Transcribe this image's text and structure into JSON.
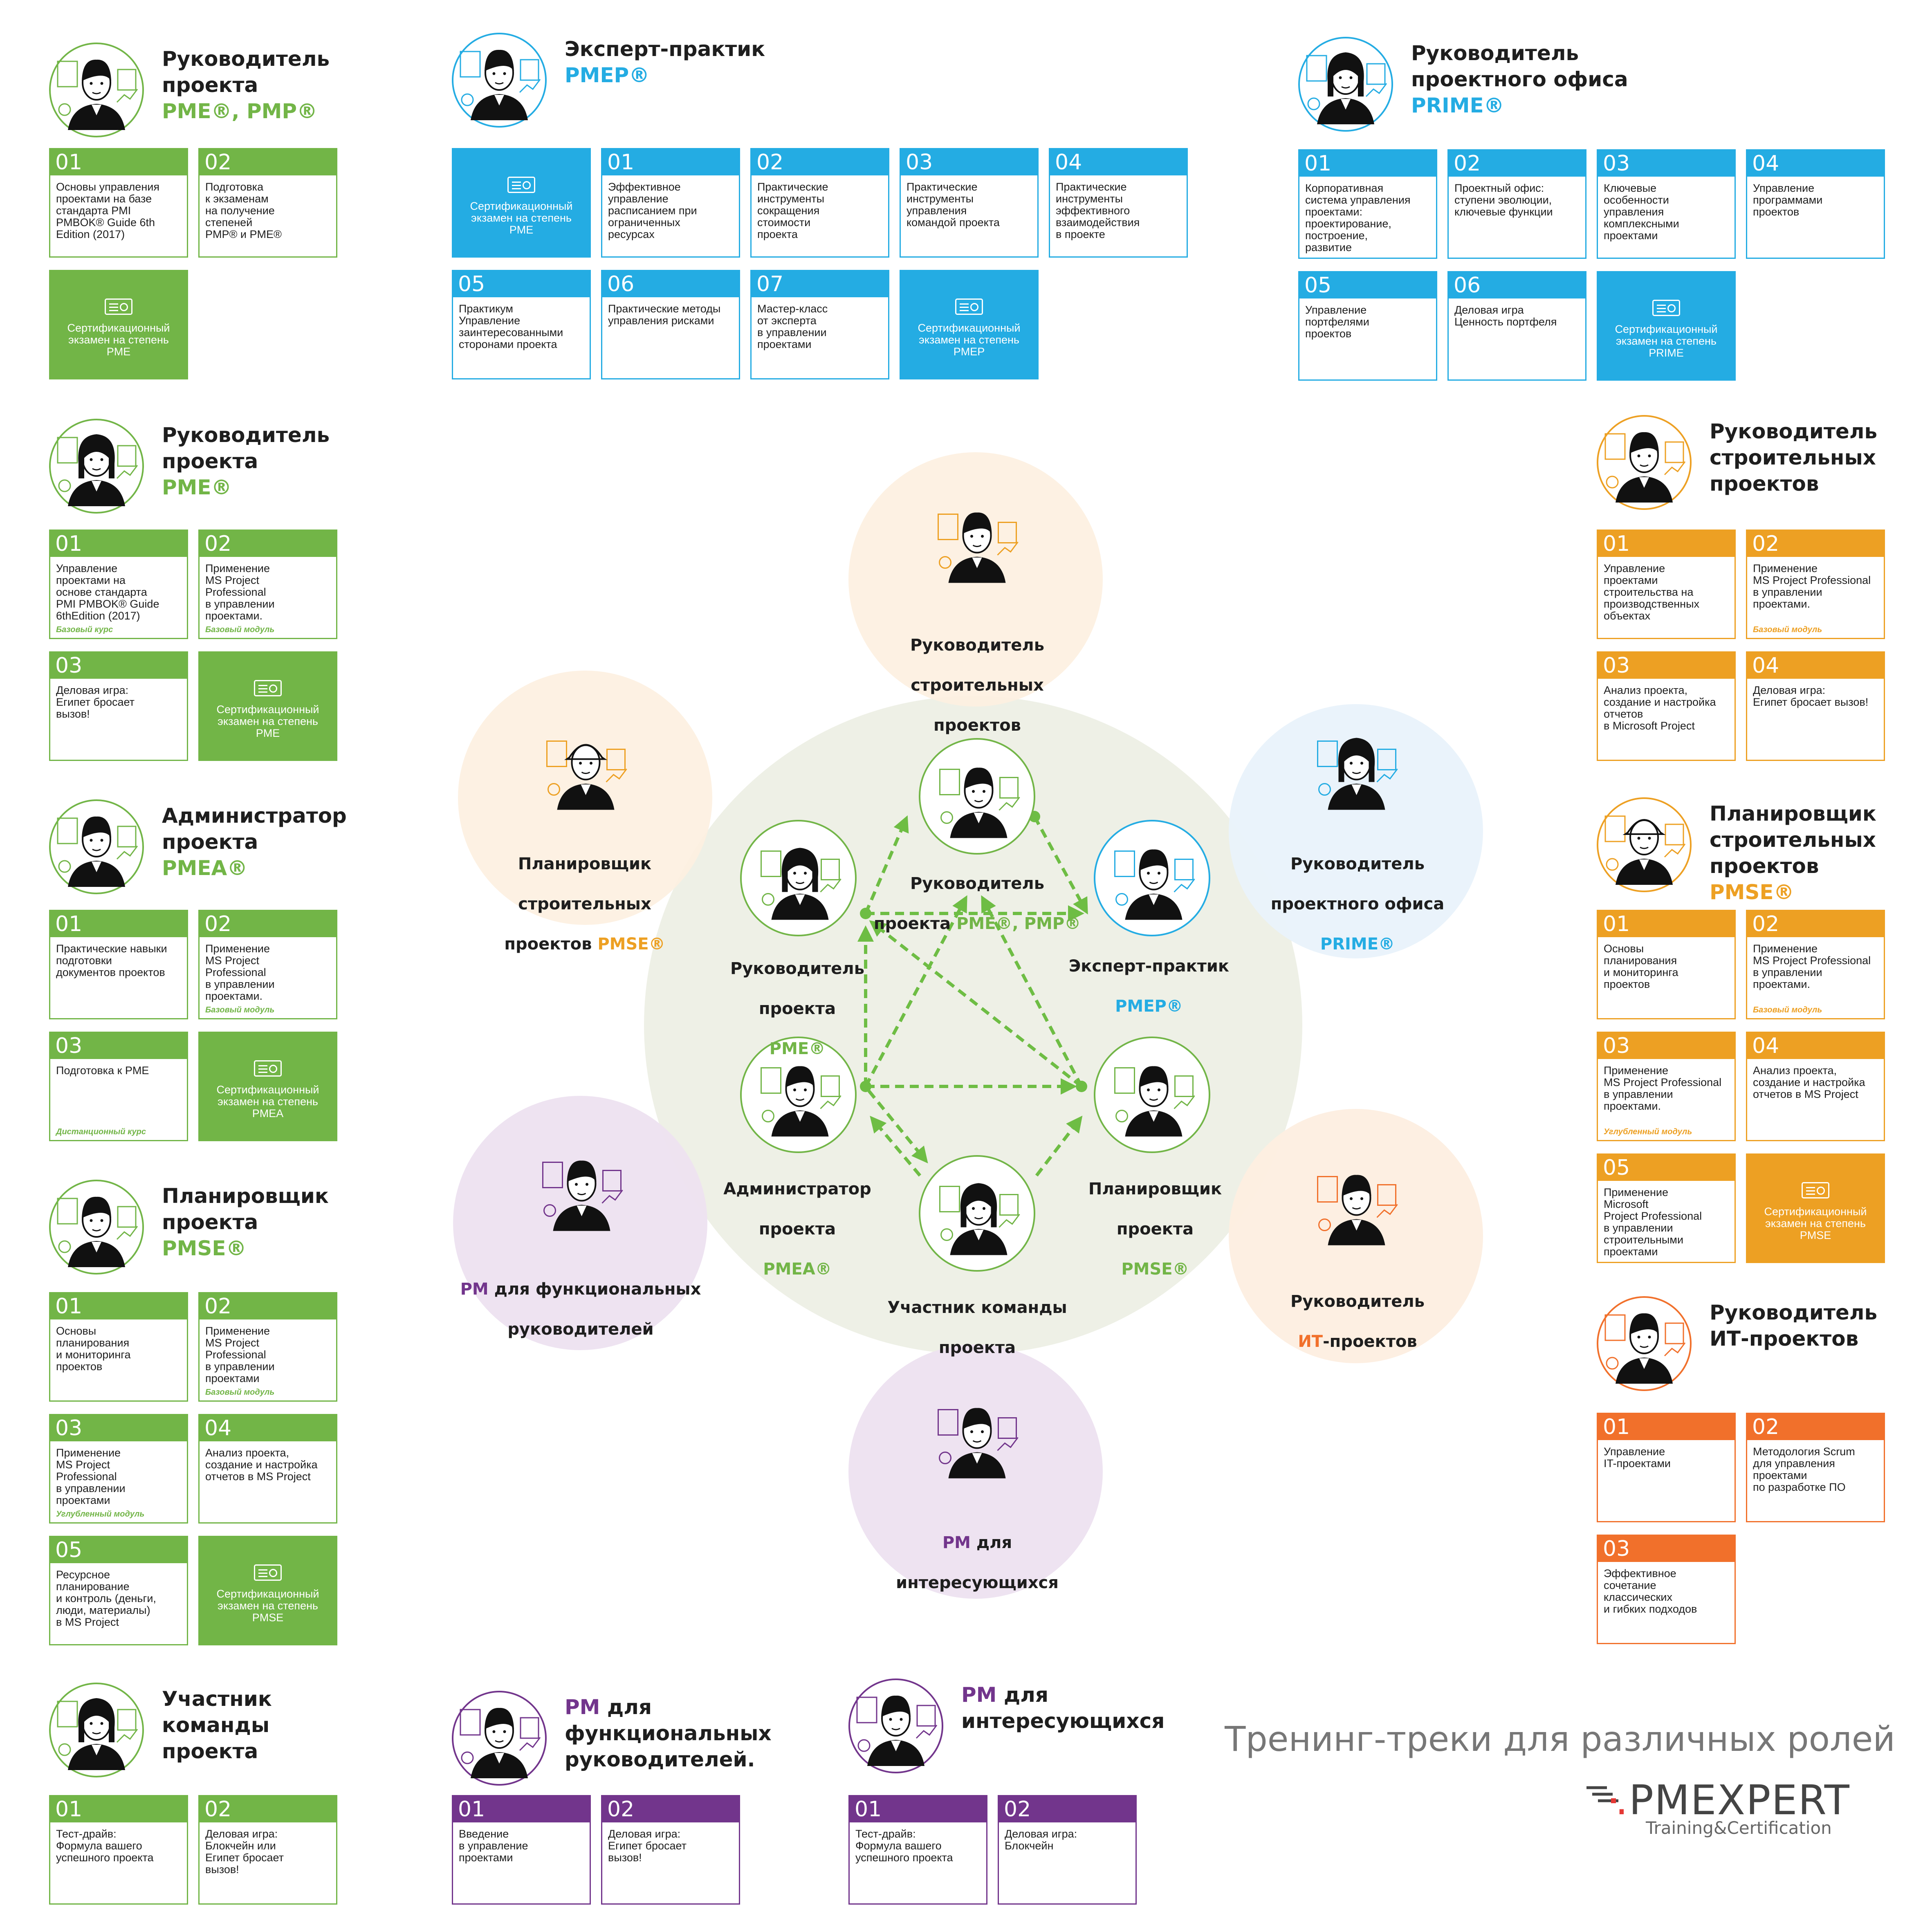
{
  "colors": {
    "green": "#72b547",
    "blue": "#24ace3",
    "orange": "#eda023",
    "orange_it": "#f1702b",
    "purple": "#72358c",
    "center_fill": "#eef0e6"
  },
  "tracks": [
    {
      "id": "pm-pmp",
      "title": "Руководитель\nпроекта",
      "subtitle": "PME®, PMP®",
      "color": "green",
      "cards": [
        {
          "num": "01",
          "text": "Основы управления\nпроектами на базе\nстандарта PMI\nPMBOK® Guide 6th\nEdition (2017)"
        },
        {
          "num": "02",
          "text": "Подготовка\nк экзаменам\nна получение\nстепеней\nPMP® и PME®"
        },
        {
          "exam": "Сертификационный\nэкзамен на степень\nPME"
        }
      ]
    },
    {
      "id": "pmep",
      "title": "Эксперт-практик",
      "subtitle": "PMEP®",
      "color": "blue",
      "cards": [
        {
          "exam": "Сертификационный\nэкзамен на степень\nPME"
        },
        {
          "num": "01",
          "text": "Эффективное\nуправление\nрасписанием при\nограниченных\nресурсах"
        },
        {
          "num": "02",
          "text": "Практические\nинструменты\nсокращения\nстоимости\nпроекта"
        },
        {
          "num": "03",
          "text": "Практические\nинструменты\nуправления\nкомандой проекта"
        },
        {
          "num": "04",
          "text": "Практические\nинструменты\nэффективного\nвзаимодействия\nв проекте"
        },
        {
          "num": "05",
          "text": "Практикум\nУправление\nзаинтересованными\nсторонами проекта"
        },
        {
          "num": "06",
          "text": "Практические методы\nуправления рисками"
        },
        {
          "num": "07",
          "text": "Мастер-класс\nот эксперта\nв управлении\nпроектами"
        },
        {
          "exam": "Сертификационный\nэкзамен на степень\nPMEP"
        }
      ]
    },
    {
      "id": "prime",
      "title": "Руководитель\nпроектного офиса",
      "subtitle": "PRIME®",
      "color": "blue",
      "cards": [
        {
          "num": "01",
          "text": "Корпоративная\nсистема управления\nпроектами:\nпроектирование,\nпостроение,\nразвитие"
        },
        {
          "num": "02",
          "text": "Проектный офис:\nступени эволюции,\nключевые функции"
        },
        {
          "num": "03",
          "text": "Ключевые\nособенности\nуправления\nкомплексными\nпроектами"
        },
        {
          "num": "04",
          "text": "Управление\nпрограммами\nпроектов"
        },
        {
          "num": "05",
          "text": "Управление\nпортфелями\nпроектов"
        },
        {
          "num": "06",
          "text": "Деловая игра\nЦенность портфеля"
        },
        {
          "exam": "Сертификационный\nэкзамен на степень\nPRIME"
        }
      ]
    },
    {
      "id": "pme",
      "title": "Руководитель\nпроекта",
      "subtitle": "PME®",
      "color": "green",
      "cards": [
        {
          "num": "01",
          "text": "Управление\nпроектами на\nоснове стандарта\nPMI PMBOK® Guide\n6thEdition (2017)",
          "tag": "Базовый курс"
        },
        {
          "num": "02",
          "text": "Применение\nMS Project\nProfessional\nв управлении\nпроектами.",
          "tag": "Базовый модуль"
        },
        {
          "num": "03",
          "text": "Деловая игра:\nЕгипет бросает\nвызов!"
        },
        {
          "exam": "Сертификационный\nэкзамен на степень\nPME"
        }
      ]
    },
    {
      "id": "pmea",
      "title": "Администратор\nпроекта",
      "subtitle": "PMEA®",
      "color": "green",
      "cards": [
        {
          "num": "01",
          "text": "Практические навыки\nподготовки\nдокументов проектов"
        },
        {
          "num": "02",
          "text": "Применение\nMS Project\nProfessional\nв управлении\nпроектами.",
          "tag": "Базовый модуль"
        },
        {
          "num": "03",
          "text": "Подготовка к PME",
          "tag": "Дистанционный курс"
        },
        {
          "exam": "Сертификационный\nэкзамен на степень\nPMEA"
        }
      ]
    },
    {
      "id": "pmse",
      "title": "Планировщик\nпроекта",
      "subtitle": "PMSE®",
      "color": "green",
      "cards": [
        {
          "num": "01",
          "text": "Основы\nпланирования\nи мониторинга\nпроектов"
        },
        {
          "num": "02",
          "text": "Применение\nMS Project\nProfessional\nв управлении\nпроектами",
          "tag": "Базовый модуль"
        },
        {
          "num": "03",
          "text": "Применение\nMS Project\nProfessional\nв управлении\nпроектами",
          "tag": "Углубленный модуль"
        },
        {
          "num": "04",
          "text": "Анализ проекта,\nсоздание и настройка\nотчетов в MS Project"
        },
        {
          "num": "05",
          "text": "Ресурсное\nпланирование\nи контроль (деньги,\nлюди, материалы)\nв MS Project"
        },
        {
          "exam": "Сертификационный\nэкзамен на степень\nPMSE"
        }
      ]
    },
    {
      "id": "team",
      "title": "Участник\nкоманды\nпроекта",
      "subtitle": "",
      "color": "green",
      "cards": [
        {
          "num": "01",
          "text": "Тест-драйв:\nФормула вашего\nуспешного проекта"
        },
        {
          "num": "02",
          "text": "Деловая игра:\nБлокчейн или\nЕгипет бросает\nвызов!"
        }
      ]
    },
    {
      "id": "pm-func",
      "title": "",
      "title_lead": "PM",
      "title_rest": " для\nфункциональных\nруководителей.",
      "subtitle": "",
      "color": "purple",
      "cards": [
        {
          "num": "01",
          "text": "Введение\nв управление\nпроектами"
        },
        {
          "num": "02",
          "text": "Деловая игра:\nЕгипет бросает\nвызов!"
        }
      ]
    },
    {
      "id": "pm-int",
      "title": "",
      "title_lead": "PM",
      "title_rest": " для\nинтересующихся",
      "subtitle": "",
      "color": "purple",
      "cards": [
        {
          "num": "01",
          "text": "Тест-драйв:\nФормула вашего\nуспешного проекта"
        },
        {
          "num": "02",
          "text": "Деловая игра:\nБлокчейн"
        }
      ]
    },
    {
      "id": "constr",
      "title": "Руководитель\nстроительных\nпроектов",
      "subtitle": "",
      "color": "orange",
      "cards": [
        {
          "num": "01",
          "text": "Управление\nпроектами\nстроительства на\nпроизводственных\nобъектах"
        },
        {
          "num": "02",
          "text": "Применение\nMS Project Professional\nв управлении\nпроектами.",
          "tag": "Базовый модуль"
        },
        {
          "num": "03",
          "text": "Анализ проекта,\nсоздание и настройка\nотчетов\nв Microsoft Project"
        },
        {
          "num": "04",
          "text": "Деловая игра:\nЕгипет бросает вызов!"
        }
      ]
    },
    {
      "id": "constr-plan",
      "title": "Планировщик\nстроительных\nпроектов",
      "subtitle": "PMSE®",
      "color": "orange",
      "cards": [
        {
          "num": "01",
          "text": "Основы\nпланирования\nи мониторинга\nпроектов"
        },
        {
          "num": "02",
          "text": "Применение\nMS Project Professional\nв управлении\nпроектами.",
          "tag": "Базовый модуль"
        },
        {
          "num": "03",
          "text": "Применение\nMS Project Professional\nв управлении\nпроектами.",
          "tag": "Углубленный модуль"
        },
        {
          "num": "04",
          "text": "Анализ проекта,\nсоздание и настройка\nотчетов в MS Project"
        },
        {
          "num": "05",
          "text": "Применение\nMicrosoft\nProject Professional\nв управлении\nстроительными\nпроектами"
        },
        {
          "exam": "Сертификационный\nэкзамен на степень\nPMSE"
        }
      ]
    },
    {
      "id": "it",
      "title": "Руководитель\nИТ-проектов",
      "subtitle": "",
      "color": "orange_it",
      "cards": [
        {
          "num": "01",
          "text": "Управление\nIT-проектами"
        },
        {
          "num": "02",
          "text": "Методология Scrum\nдля управления\nпроектами\nпо разработке ПО"
        },
        {
          "num": "03",
          "text": "Эффективное\nсочетание\nклассических\nи гибких подходов"
        }
      ]
    }
  ],
  "diagram": {
    "nodes": {
      "pm_pmp": {
        "line1": "Руководитель",
        "line2": "проекта ",
        "accent": "PME®, PMP®"
      },
      "pmep": {
        "line1": "Эксперт-практик",
        "accent": "PMEP®"
      },
      "pme": {
        "line1": "Руководитель",
        "line2": "проекта",
        "accent": "PME®"
      },
      "pmea": {
        "line1": "Администратор",
        "line2": "проекта",
        "accent": "PMEA®"
      },
      "pmse": {
        "line1": "Планировщик",
        "line2": "проекта",
        "accent": "PMSE®"
      },
      "team": {
        "line1": "Участник команды",
        "line2": "проекта"
      }
    },
    "satellites": {
      "constr": {
        "line1": "Руководитель",
        "line2": "строительных",
        "line3": "проектов"
      },
      "constr_plan": {
        "line1": "Планировщик",
        "line2": "строительных",
        "line3": "проектов ",
        "accent": "PMSE®"
      },
      "prime": {
        "line1": "Руководитель",
        "line2": "проектного офиса",
        "accent": "PRIME®"
      },
      "it": {
        "line1": "Руководитель",
        "accent": "ИТ",
        "line2_rest": "-проектов"
      },
      "pm_func": {
        "accent": "PM",
        "line1_rest": " для функциональных",
        "line2": "руководителей"
      },
      "pm_int": {
        "accent": "PM",
        "line1_rest": " для",
        "line2": "интересующихся"
      }
    }
  },
  "footer": {
    "title": "Тренинг-треки для различных ролей",
    "brand": "PMEXPERT",
    "brand_sub": "Training&Certification"
  }
}
